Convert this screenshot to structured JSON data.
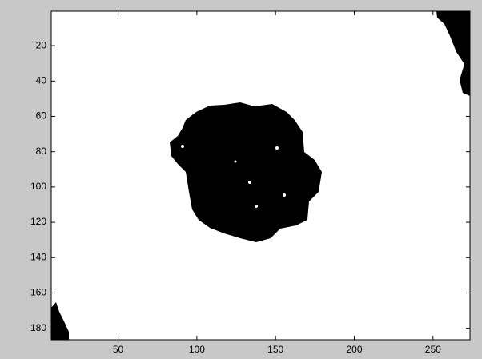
{
  "chart_data": {
    "type": "image",
    "xlim": [
      7.5,
      273.5
    ],
    "xticks": [
      50,
      100,
      150,
      200,
      250
    ],
    "ylim": [
      0.5,
      186.5
    ],
    "yticks": [
      20,
      40,
      60,
      80,
      100,
      120,
      140,
      160,
      180
    ],
    "y_reversed": true,
    "color": "#000000"
  }
}
